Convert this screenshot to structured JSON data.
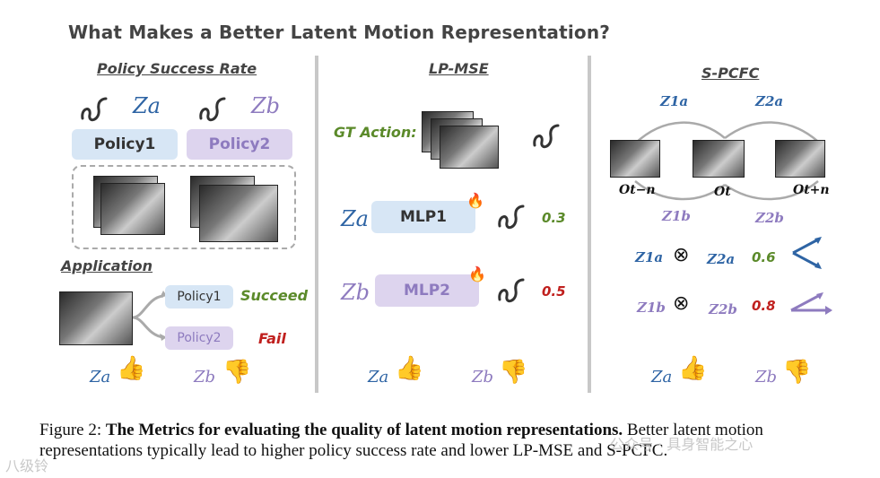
{
  "title": "What Makes a Better Latent Motion Representation?",
  "sections": {
    "policy": "Policy Success Rate",
    "lpmse": "LP-MSE",
    "spcfc": "S-PCFC",
    "application": "Application"
  },
  "policy": {
    "za": "Za",
    "zb": "Zb",
    "policy1": "Policy1",
    "policy2": "Policy2"
  },
  "application": {
    "policy1": "Policy1",
    "policy2": "Policy2",
    "succeed": "Succeed",
    "fail": "Fail"
  },
  "lpmse": {
    "gt_action": "GT Action:",
    "za": "Za",
    "zb": "Zb",
    "mlp1": "MLP1",
    "mlp2": "MLP2",
    "val1": "0.3",
    "val2": "0.5"
  },
  "spcfc": {
    "z1a": "Z1a",
    "z2a": "Z2a",
    "z1b": "Z1b",
    "z2b": "Z2b",
    "o_tn_minus": "Ot−n",
    "o_t": "Ot",
    "o_tn_plus": "Ot+n",
    "row1_left": "Z1a",
    "row1_right": "Z2a",
    "row1_val": "0.6",
    "row2_left": "Z1b",
    "row2_right": "Z2b",
    "row2_val": "0.8",
    "otimes": "⊗"
  },
  "bottom": {
    "za": "Za",
    "zb": "Zb"
  },
  "caption": {
    "prefix": "Figure 2:",
    "bold": "The Metrics for evaluating the quality of latent motion representations.",
    "rest": "Better latent motion representations typically lead to higher policy success rate and lower LP-MSE and S-PCFC."
  },
  "watermark": {
    "left": "八级铃",
    "right": "公众号 · 具身智能之心"
  },
  "colors": {
    "blue": "#2e64a4",
    "purple": "#8e7bbf",
    "green": "#5b8a2a",
    "red": "#c0201e"
  }
}
